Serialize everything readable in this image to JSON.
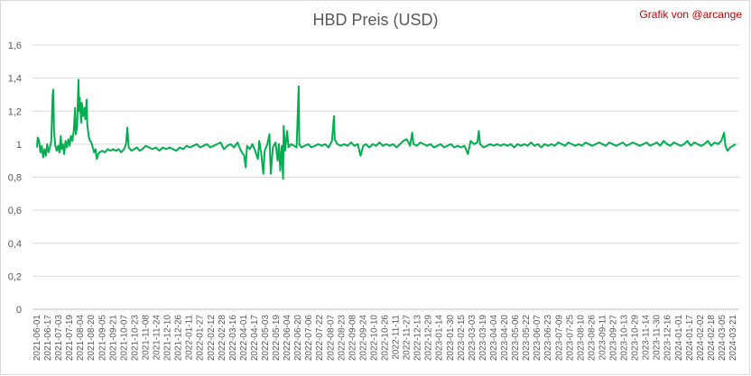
{
  "credit": "Grafik von @arcange",
  "chart_data": {
    "type": "line",
    "title": "HBD Preis (USD)",
    "xlabel": "",
    "ylabel": "",
    "ylim": [
      0,
      1.6
    ],
    "y_ticks": [
      "0",
      "0,2",
      "0,4",
      "0,6",
      "0,8",
      "1",
      "1,2",
      "1,4",
      "1,6"
    ],
    "y_tick_values": [
      0,
      0.2,
      0.4,
      0.6,
      0.8,
      1.0,
      1.2,
      1.4,
      1.6
    ],
    "grid": true,
    "legend": "none",
    "line_color": "#00b050",
    "x_tick_labels": [
      "2021-06-01",
      "2021-06-17",
      "2021-07-03",
      "2021-07-19",
      "2021-08-04",
      "2021-08-20",
      "2021-09-05",
      "2021-09-21",
      "2021-10-07",
      "2021-10-23",
      "2021-11-08",
      "2021-11-24",
      "2021-12-10",
      "2021-12-26",
      "2022-01-11",
      "2022-01-27",
      "2022-02-12",
      "2022-02-28",
      "2022-03-16",
      "2022-04-01",
      "2022-04-17",
      "2022-05-03",
      "2022-05-19",
      "2022-06-04",
      "2022-06-20",
      "2022-07-06",
      "2022-07-22",
      "2022-08-07",
      "2022-08-23",
      "2022-09-08",
      "2022-09-24",
      "2022-10-10",
      "2022-10-26",
      "2022-11-11",
      "2022-11-27",
      "2022-12-13",
      "2022-12-29",
      "2023-01-14",
      "2023-01-30",
      "2023-02-15",
      "2023-03-03",
      "2023-03-19",
      "2023-04-04",
      "2023-04-20",
      "2023-05-06",
      "2023-05-22",
      "2023-06-07",
      "2023-06-23",
      "2023-07-09",
      "2023-07-25",
      "2023-08-10",
      "2023-08-26",
      "2023-09-11",
      "2023-09-27",
      "2023-10-13",
      "2023-10-29",
      "2023-11-14",
      "2023-11-30",
      "2023-12-16",
      "2024-01-01",
      "2024-01-17",
      "2024-02-02",
      "2024-02-18",
      "2024-03-05",
      "2024-03-21"
    ],
    "series": [
      {
        "points": [
          [
            "2021-06-01",
            0.98
          ],
          [
            "2021-06-02",
            1.04
          ],
          [
            "2021-06-04",
            1.02
          ],
          [
            "2021-06-06",
            0.95
          ],
          [
            "2021-06-08",
            0.99
          ],
          [
            "2021-06-10",
            0.92
          ],
          [
            "2021-06-12",
            0.97
          ],
          [
            "2021-06-14",
            0.93
          ],
          [
            "2021-06-16",
            1.0
          ],
          [
            "2021-06-18",
            0.95
          ],
          [
            "2021-06-20",
            0.98
          ],
          [
            "2021-06-22",
            1.02
          ],
          [
            "2021-06-24",
            1.3
          ],
          [
            "2021-06-25",
            1.33
          ],
          [
            "2021-06-26",
            1.08
          ],
          [
            "2021-06-28",
            0.99
          ],
          [
            "2021-06-30",
            0.96
          ],
          [
            "2021-07-02",
            0.99
          ],
          [
            "2021-07-04",
            0.95
          ],
          [
            "2021-07-06",
            1.05
          ],
          [
            "2021-07-07",
            0.97
          ],
          [
            "2021-07-09",
            1.0
          ],
          [
            "2021-07-11",
            0.94
          ],
          [
            "2021-07-13",
            1.02
          ],
          [
            "2021-07-15",
            0.98
          ],
          [
            "2021-07-17",
            1.03
          ],
          [
            "2021-07-19",
            0.99
          ],
          [
            "2021-07-21",
            1.05
          ],
          [
            "2021-07-23",
            1.02
          ],
          [
            "2021-07-25",
            1.08
          ],
          [
            "2021-07-27",
            1.22
          ],
          [
            "2021-07-28",
            1.06
          ],
          [
            "2021-07-30",
            1.1
          ],
          [
            "2021-08-01",
            1.39
          ],
          [
            "2021-08-02",
            1.2
          ],
          [
            "2021-08-03",
            1.28
          ],
          [
            "2021-08-05",
            1.13
          ],
          [
            "2021-08-06",
            1.25
          ],
          [
            "2021-08-08",
            1.17
          ],
          [
            "2021-08-10",
            1.22
          ],
          [
            "2021-08-11",
            1.15
          ],
          [
            "2021-08-13",
            1.27
          ],
          [
            "2021-08-14",
            1.12
          ],
          [
            "2021-08-16",
            1.05
          ],
          [
            "2021-08-18",
            1.02
          ],
          [
            "2021-08-20",
            1.01
          ],
          [
            "2021-08-22",
            0.98
          ],
          [
            "2021-08-24",
            0.95
          ],
          [
            "2021-08-26",
            0.97
          ],
          [
            "2021-08-28",
            0.91
          ],
          [
            "2021-08-30",
            0.94
          ],
          [
            "2021-09-01",
            0.95
          ],
          [
            "2021-09-05",
            0.96
          ],
          [
            "2021-09-09",
            0.95
          ],
          [
            "2021-09-13",
            0.97
          ],
          [
            "2021-09-17",
            0.96
          ],
          [
            "2021-09-21",
            0.97
          ],
          [
            "2021-09-25",
            0.96
          ],
          [
            "2021-09-29",
            0.97
          ],
          [
            "2021-10-03",
            0.95
          ],
          [
            "2021-10-07",
            0.97
          ],
          [
            "2021-10-10",
            1.0
          ],
          [
            "2021-10-12",
            1.1
          ],
          [
            "2021-10-14",
            0.98
          ],
          [
            "2021-10-18",
            0.96
          ],
          [
            "2021-10-22",
            0.97
          ],
          [
            "2021-10-26",
            0.98
          ],
          [
            "2021-10-30",
            0.96
          ],
          [
            "2021-11-03",
            0.97
          ],
          [
            "2021-11-08",
            0.99
          ],
          [
            "2021-11-13",
            0.98
          ],
          [
            "2021-11-18",
            0.97
          ],
          [
            "2021-11-23",
            0.98
          ],
          [
            "2021-11-28",
            0.96
          ],
          [
            "2021-12-03",
            0.98
          ],
          [
            "2021-12-08",
            0.97
          ],
          [
            "2021-12-13",
            0.98
          ],
          [
            "2021-12-18",
            0.97
          ],
          [
            "2021-12-23",
            0.96
          ],
          [
            "2021-12-28",
            0.98
          ],
          [
            "2022-01-02",
            0.97
          ],
          [
            "2022-01-07",
            0.99
          ],
          [
            "2022-01-12",
            0.98
          ],
          [
            "2022-01-17",
            0.99
          ],
          [
            "2022-01-22",
            1.0
          ],
          [
            "2022-01-27",
            0.98
          ],
          [
            "2022-02-01",
            0.99
          ],
          [
            "2022-02-06",
            1.0
          ],
          [
            "2022-02-11",
            0.98
          ],
          [
            "2022-02-16",
            0.99
          ],
          [
            "2022-02-21",
            1.0
          ],
          [
            "2022-02-26",
            1.01
          ],
          [
            "2022-03-03",
            0.97
          ],
          [
            "2022-03-08",
            0.99
          ],
          [
            "2022-03-13",
            1.0
          ],
          [
            "2022-03-18",
            0.98
          ],
          [
            "2022-03-23",
            1.01
          ],
          [
            "2022-03-28",
            0.96
          ],
          [
            "2022-04-02",
            0.93
          ],
          [
            "2022-04-04",
            0.86
          ],
          [
            "2022-04-06",
            0.99
          ],
          [
            "2022-04-10",
            0.97
          ],
          [
            "2022-04-14",
            1.0
          ],
          [
            "2022-04-18",
            0.96
          ],
          [
            "2022-04-22",
            0.91
          ],
          [
            "2022-04-24",
            1.02
          ],
          [
            "2022-04-27",
            0.94
          ],
          [
            "2022-04-30",
            0.82
          ],
          [
            "2022-05-02",
            0.96
          ],
          [
            "2022-05-06",
            1.0
          ],
          [
            "2022-05-09",
            1.06
          ],
          [
            "2022-05-11",
            0.82
          ],
          [
            "2022-05-14",
            0.98
          ],
          [
            "2022-05-18",
            1.01
          ],
          [
            "2022-05-21",
            0.9
          ],
          [
            "2022-05-23",
            1.0
          ],
          [
            "2022-05-25",
            0.84
          ],
          [
            "2022-05-27",
            0.99
          ],
          [
            "2022-05-29",
            0.79
          ],
          [
            "2022-05-30",
            1.11
          ],
          [
            "2022-06-01",
            0.96
          ],
          [
            "2022-06-04",
            1.08
          ],
          [
            "2022-06-06",
            0.98
          ],
          [
            "2022-06-10",
            1.0
          ],
          [
            "2022-06-14",
            0.99
          ],
          [
            "2022-06-18",
            0.98
          ],
          [
            "2022-06-21",
            1.35
          ],
          [
            "2022-06-22",
            1.0
          ],
          [
            "2022-06-25",
            0.98
          ],
          [
            "2022-06-30",
            0.99
          ],
          [
            "2022-07-05",
            1.0
          ],
          [
            "2022-07-10",
            0.98
          ],
          [
            "2022-07-15",
            0.99
          ],
          [
            "2022-07-20",
            1.0
          ],
          [
            "2022-07-25",
            0.99
          ],
          [
            "2022-07-30",
            1.0
          ],
          [
            "2022-08-04",
            0.98
          ],
          [
            "2022-08-09",
            1.02
          ],
          [
            "2022-08-12",
            1.17
          ],
          [
            "2022-08-13",
            1.03
          ],
          [
            "2022-08-17",
            1.0
          ],
          [
            "2022-08-22",
            0.99
          ],
          [
            "2022-08-27",
            1.0
          ],
          [
            "2022-09-01",
            0.99
          ],
          [
            "2022-09-06",
            1.01
          ],
          [
            "2022-09-11",
            0.99
          ],
          [
            "2022-09-16",
            1.0
          ],
          [
            "2022-09-20",
            0.93
          ],
          [
            "2022-09-24",
            0.99
          ],
          [
            "2022-09-28",
            1.0
          ],
          [
            "2022-10-03",
            0.98
          ],
          [
            "2022-10-08",
            1.0
          ],
          [
            "2022-10-13",
            0.99
          ],
          [
            "2022-10-18",
            1.01
          ],
          [
            "2022-10-23",
            0.99
          ],
          [
            "2022-10-28",
            1.0
          ],
          [
            "2022-11-02",
            0.99
          ],
          [
            "2022-11-07",
            1.0
          ],
          [
            "2022-11-12",
            0.98
          ],
          [
            "2022-11-17",
            1.0
          ],
          [
            "2022-11-22",
            1.02
          ],
          [
            "2022-11-27",
            1.03
          ],
          [
            "2022-12-02",
            0.99
          ],
          [
            "2022-12-05",
            1.07
          ],
          [
            "2022-12-07",
            1.0
          ],
          [
            "2022-12-12",
            0.99
          ],
          [
            "2022-12-17",
            1.01
          ],
          [
            "2022-12-22",
            1.0
          ],
          [
            "2022-12-27",
            0.99
          ],
          [
            "2023-01-01",
            1.0
          ],
          [
            "2023-01-06",
            0.98
          ],
          [
            "2023-01-11",
            0.99
          ],
          [
            "2023-01-16",
            1.0
          ],
          [
            "2023-01-21",
            0.98
          ],
          [
            "2023-01-26",
            0.99
          ],
          [
            "2023-01-31",
            1.0
          ],
          [
            "2023-02-05",
            0.98
          ],
          [
            "2023-02-10",
            0.99
          ],
          [
            "2023-02-15",
            0.98
          ],
          [
            "2023-02-20",
            0.99
          ],
          [
            "2023-02-25",
            0.94
          ],
          [
            "2023-03-01",
            1.02
          ],
          [
            "2023-03-06",
            1.0
          ],
          [
            "2023-03-11",
            1.01
          ],
          [
            "2023-03-13",
            1.08
          ],
          [
            "2023-03-15",
            1.0
          ],
          [
            "2023-03-20",
            0.98
          ],
          [
            "2023-03-25",
            0.99
          ],
          [
            "2023-03-30",
            1.0
          ],
          [
            "2023-04-04",
            0.99
          ],
          [
            "2023-04-09",
            1.0
          ],
          [
            "2023-04-14",
            0.99
          ],
          [
            "2023-04-19",
            1.0
          ],
          [
            "2023-04-24",
            0.99
          ],
          [
            "2023-04-29",
            1.0
          ],
          [
            "2023-05-04",
            0.98
          ],
          [
            "2023-05-09",
            1.0
          ],
          [
            "2023-05-14",
            0.99
          ],
          [
            "2023-05-19",
            1.0
          ],
          [
            "2023-05-24",
            0.99
          ],
          [
            "2023-05-29",
            1.01
          ],
          [
            "2023-06-03",
            0.99
          ],
          [
            "2023-06-08",
            1.0
          ],
          [
            "2023-06-13",
            0.98
          ],
          [
            "2023-06-18",
            1.0
          ],
          [
            "2023-06-23",
            0.99
          ],
          [
            "2023-06-28",
            1.0
          ],
          [
            "2023-07-03",
            0.99
          ],
          [
            "2023-07-08",
            1.01
          ],
          [
            "2023-07-13",
            1.0
          ],
          [
            "2023-07-18",
            0.99
          ],
          [
            "2023-07-23",
            1.01
          ],
          [
            "2023-07-28",
            1.0
          ],
          [
            "2023-08-02",
            0.99
          ],
          [
            "2023-08-07",
            1.0
          ],
          [
            "2023-08-12",
            0.99
          ],
          [
            "2023-08-17",
            1.01
          ],
          [
            "2023-08-22",
            1.0
          ],
          [
            "2023-08-27",
            0.99
          ],
          [
            "2023-09-01",
            1.0
          ],
          [
            "2023-09-06",
            1.01
          ],
          [
            "2023-09-11",
            1.0
          ],
          [
            "2023-09-16",
            0.99
          ],
          [
            "2023-09-21",
            1.01
          ],
          [
            "2023-09-26",
            1.0
          ],
          [
            "2023-10-01",
            0.99
          ],
          [
            "2023-10-06",
            1.0
          ],
          [
            "2023-10-11",
            1.01
          ],
          [
            "2023-10-16",
            0.99
          ],
          [
            "2023-10-21",
            1.0
          ],
          [
            "2023-10-26",
            1.01
          ],
          [
            "2023-10-31",
            1.0
          ],
          [
            "2023-11-05",
            0.99
          ],
          [
            "2023-11-10",
            1.0
          ],
          [
            "2023-11-15",
            1.01
          ],
          [
            "2023-11-20",
            0.99
          ],
          [
            "2023-11-25",
            1.0
          ],
          [
            "2023-11-30",
            1.01
          ],
          [
            "2023-12-05",
            0.99
          ],
          [
            "2023-12-10",
            1.02
          ],
          [
            "2023-12-15",
            1.0
          ],
          [
            "2023-12-20",
            0.99
          ],
          [
            "2023-12-25",
            1.01
          ],
          [
            "2023-12-30",
            1.0
          ],
          [
            "2024-01-04",
            0.99
          ],
          [
            "2024-01-09",
            1.0
          ],
          [
            "2024-01-14",
            1.02
          ],
          [
            "2024-01-19",
            0.99
          ],
          [
            "2024-01-24",
            1.01
          ],
          [
            "2024-01-29",
            1.0
          ],
          [
            "2024-02-03",
            0.99
          ],
          [
            "2024-02-08",
            1.0
          ],
          [
            "2024-02-13",
            1.02
          ],
          [
            "2024-02-18",
            0.99
          ],
          [
            "2024-02-23",
            1.01
          ],
          [
            "2024-02-28",
            1.0
          ],
          [
            "2024-03-04",
            1.02
          ],
          [
            "2024-03-08",
            1.07
          ],
          [
            "2024-03-10",
            0.99
          ],
          [
            "2024-03-13",
            0.96
          ],
          [
            "2024-03-17",
            0.98
          ],
          [
            "2024-03-21",
            0.99
          ],
          [
            "2024-03-25",
            1.0
          ]
        ]
      }
    ]
  }
}
